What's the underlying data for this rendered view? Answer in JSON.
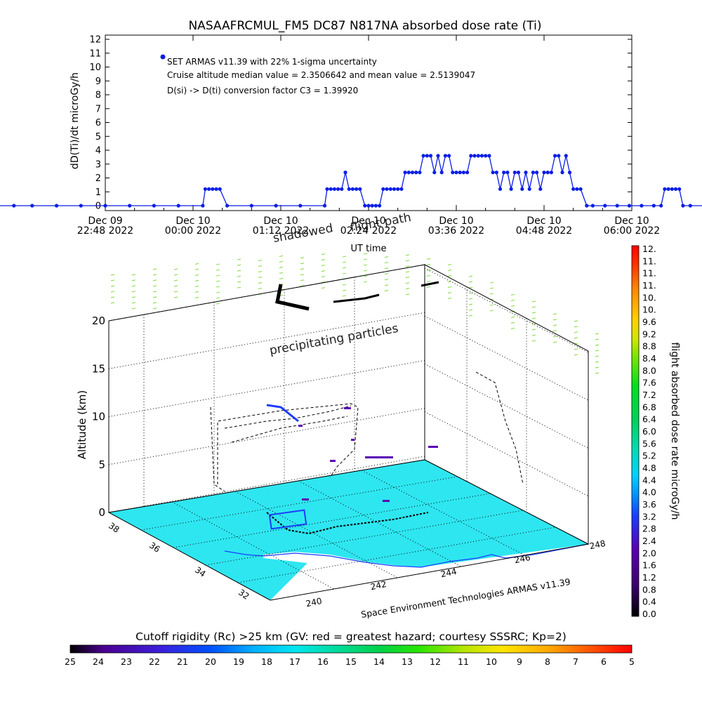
{
  "chart_data": [
    {
      "type": "line",
      "title": "NASAAFRCMUL_FM5 DC87 N817NA absorbed dose rate (Ti)",
      "ylabel": "dD(Ti)/dt microGy/h",
      "xlabel": "UT time",
      "ylim": [
        0,
        12
      ],
      "yticks": [
        "0",
        "1",
        "2",
        "3",
        "4",
        "5",
        "6",
        "7",
        "8",
        "9",
        "10",
        "11",
        "12"
      ],
      "xtick_labels": [
        [
          "Dec 09",
          "22:48 2022"
        ],
        [
          "Dec 10",
          "00:00 2022"
        ],
        [
          "Dec 10",
          "01:12 2022"
        ],
        [
          "Dec 10",
          "02:24 2022"
        ],
        [
          "Dec 10",
          "03:36 2022"
        ],
        [
          "Dec 10",
          "04:48 2022"
        ],
        [
          "Dec 10",
          "06:00 2022"
        ]
      ],
      "legend": "SET ARMAS v11.39 with 22% 1-sigma uncertainty",
      "annotations": [
        "Cruise altitude median value = 2.3506642 and mean value = 2.5139047",
        "D(si) -> D(ti) conversion factor C3 = 1.39920"
      ],
      "series_color": "#0a1ee6",
      "series": [
        {
          "name": "SET ARMAS v11.39",
          "x_minutes": [
            30,
            45,
            60,
            80,
            100,
            120,
            140,
            160,
            180,
            200,
            202,
            205,
            208,
            211,
            214,
            220,
            240,
            260,
            280,
            300,
            302,
            305,
            308,
            311,
            314,
            317,
            320,
            323,
            326,
            329,
            333,
            336,
            339,
            342,
            345,
            348,
            351,
            354,
            357,
            360,
            363,
            366,
            369,
            372,
            375,
            378,
            381,
            384,
            387,
            390,
            393,
            396,
            399,
            402,
            405,
            408,
            411,
            414,
            417,
            420,
            423,
            426,
            429,
            432,
            435,
            438,
            441,
            444,
            447,
            450,
            453,
            456,
            459,
            462,
            465,
            468,
            471,
            474,
            477,
            480,
            483,
            486,
            489,
            492,
            495,
            498,
            501,
            504,
            507,
            510,
            515,
            520,
            530,
            540,
            550,
            560,
            570,
            576,
            579,
            582,
            585,
            588,
            591,
            594,
            600,
            615,
            630,
            645,
            660,
            675,
            690
          ],
          "y": [
            0,
            0,
            0,
            0,
            0,
            0,
            0,
            0,
            0,
            0,
            1.2,
            1.2,
            1.2,
            1.2,
            1.2,
            0,
            0,
            0,
            0,
            0,
            1.2,
            1.2,
            1.2,
            1.2,
            1.2,
            2.4,
            1.2,
            1.2,
            1.2,
            1.2,
            0,
            0,
            0,
            0,
            0,
            1.2,
            1.2,
            1.2,
            1.2,
            1.2,
            1.2,
            2.4,
            2.4,
            2.4,
            2.4,
            2.4,
            3.6,
            3.6,
            3.6,
            2.4,
            3.6,
            2.4,
            3.6,
            3.6,
            2.4,
            2.4,
            2.4,
            2.4,
            2.4,
            3.6,
            3.6,
            3.6,
            3.6,
            3.6,
            3.6,
            2.4,
            2.4,
            1.2,
            2.4,
            2.4,
            1.2,
            2.4,
            2.4,
            1.2,
            2.4,
            1.2,
            2.4,
            2.4,
            1.2,
            2.4,
            2.4,
            2.4,
            3.6,
            3.6,
            2.4,
            3.6,
            2.4,
            1.2,
            1.2,
            1.2,
            0,
            0,
            0,
            0,
            0,
            0,
            0,
            0,
            1.2,
            1.2,
            1.2,
            1.2,
            1.2,
            0,
            0,
            0,
            0,
            0,
            0,
            0,
            0
          ]
        }
      ]
    },
    {
      "type": "scatter",
      "subtype": "3d-flight-path",
      "zlabel": "Altitude (km)",
      "zticks": [
        "0",
        "5",
        "10",
        "15",
        "20"
      ],
      "zlim": [
        0,
        20
      ],
      "y_ticks": [
        "32",
        "34",
        "36",
        "38"
      ],
      "x_ticks": [
        "240",
        "242",
        "244",
        "246",
        "248"
      ],
      "annotations": [
        "flight path",
        "shadowed",
        "precipitating particles"
      ],
      "footer": "Space Environment Technologies ARMAS v11.39",
      "colorbar_label": "flight absorbed dose rate microGy/h",
      "colorbar_ticks": [
        "12.",
        "11.",
        "11.",
        "11.",
        "10.",
        "10.",
        "9.6",
        "9.2",
        "8.8",
        "8.4",
        "8.0",
        "7.6",
        "7.2",
        "6.8",
        "6.4",
        "6.0",
        "5.6",
        "5.2",
        "4.8",
        "4.4",
        "4.0",
        "3.6",
        "3.2",
        "2.8",
        "2.4",
        "2.0",
        "1.6",
        "1.2",
        "0.8",
        "0.4",
        "0.0"
      ]
    },
    {
      "type": "heatmap",
      "subtype": "colorbar",
      "title": "Cutoff rigidity (Rc) >25 km (GV: red = greatest hazard; courtesy SSSRC; Kp=2)",
      "ticks": [
        "25",
        "24",
        "23",
        "22",
        "21",
        "20",
        "19",
        "18",
        "17",
        "16",
        "15",
        "14",
        "13",
        "12",
        "11",
        "10",
        "9",
        "8",
        "7",
        "6",
        "5"
      ]
    }
  ],
  "colors": {
    "data_blue": "#0a1ee6",
    "map_fill": "#2ee6f0",
    "particles": "#7fd93a"
  }
}
